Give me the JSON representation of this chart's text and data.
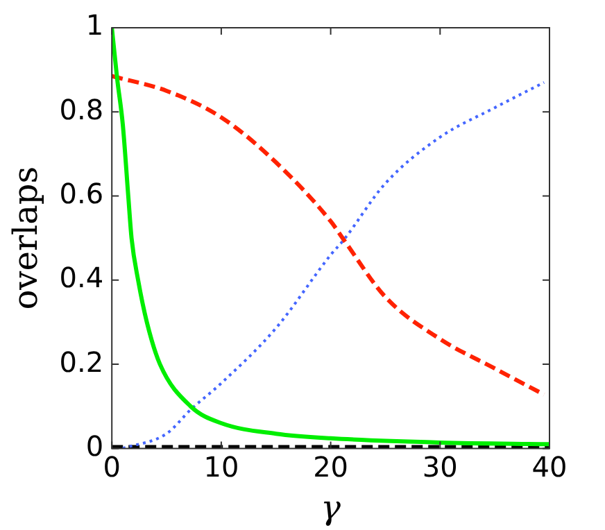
{
  "chart_data": {
    "type": "line",
    "xlabel": "γ",
    "ylabel": "overlaps",
    "xlim": [
      0,
      40
    ],
    "ylim": [
      0,
      1
    ],
    "xticks": [
      0,
      10,
      20,
      30,
      40
    ],
    "yticks": [
      0,
      0.2,
      0.4,
      0.6,
      0.8,
      1
    ],
    "grid": false,
    "legend": false,
    "marker": "none",
    "series": [
      {
        "color": "#00ee00",
        "line_style": "solid",
        "x": [
          0,
          0.48,
          1,
          1.5,
          1.8,
          2.4,
          3.2,
          4.4,
          7.2,
          10,
          15,
          20,
          30,
          40
        ],
        "values": [
          1,
          0.88,
          0.77,
          0.6,
          0.5,
          0.4,
          0.3,
          0.2,
          0.1,
          0.06,
          0.035,
          0.024,
          0.014,
          0.01
        ]
      },
      {
        "color": "#ff2200",
        "line_style": "dashed",
        "x": [
          0,
          5,
          10,
          15,
          20,
          21.2,
          25,
          30,
          35,
          39.5
        ],
        "values": [
          0.885,
          0.85,
          0.787,
          0.68,
          0.54,
          0.496,
          0.36,
          0.26,
          0.19,
          0.128
        ]
      },
      {
        "color": "#4466ff",
        "line_style": "dotted",
        "x": [
          1,
          5,
          7.2,
          10,
          15,
          20,
          21.2,
          25,
          30,
          35,
          39.5
        ],
        "values": [
          0,
          0.035,
          0.092,
          0.155,
          0.286,
          0.46,
          0.496,
          0.63,
          0.74,
          0.81,
          0.87
        ]
      },
      {
        "color": "#000000",
        "line_style": "dashed",
        "x": [
          0,
          40
        ],
        "values": [
          0.003,
          0.003
        ]
      }
    ]
  }
}
